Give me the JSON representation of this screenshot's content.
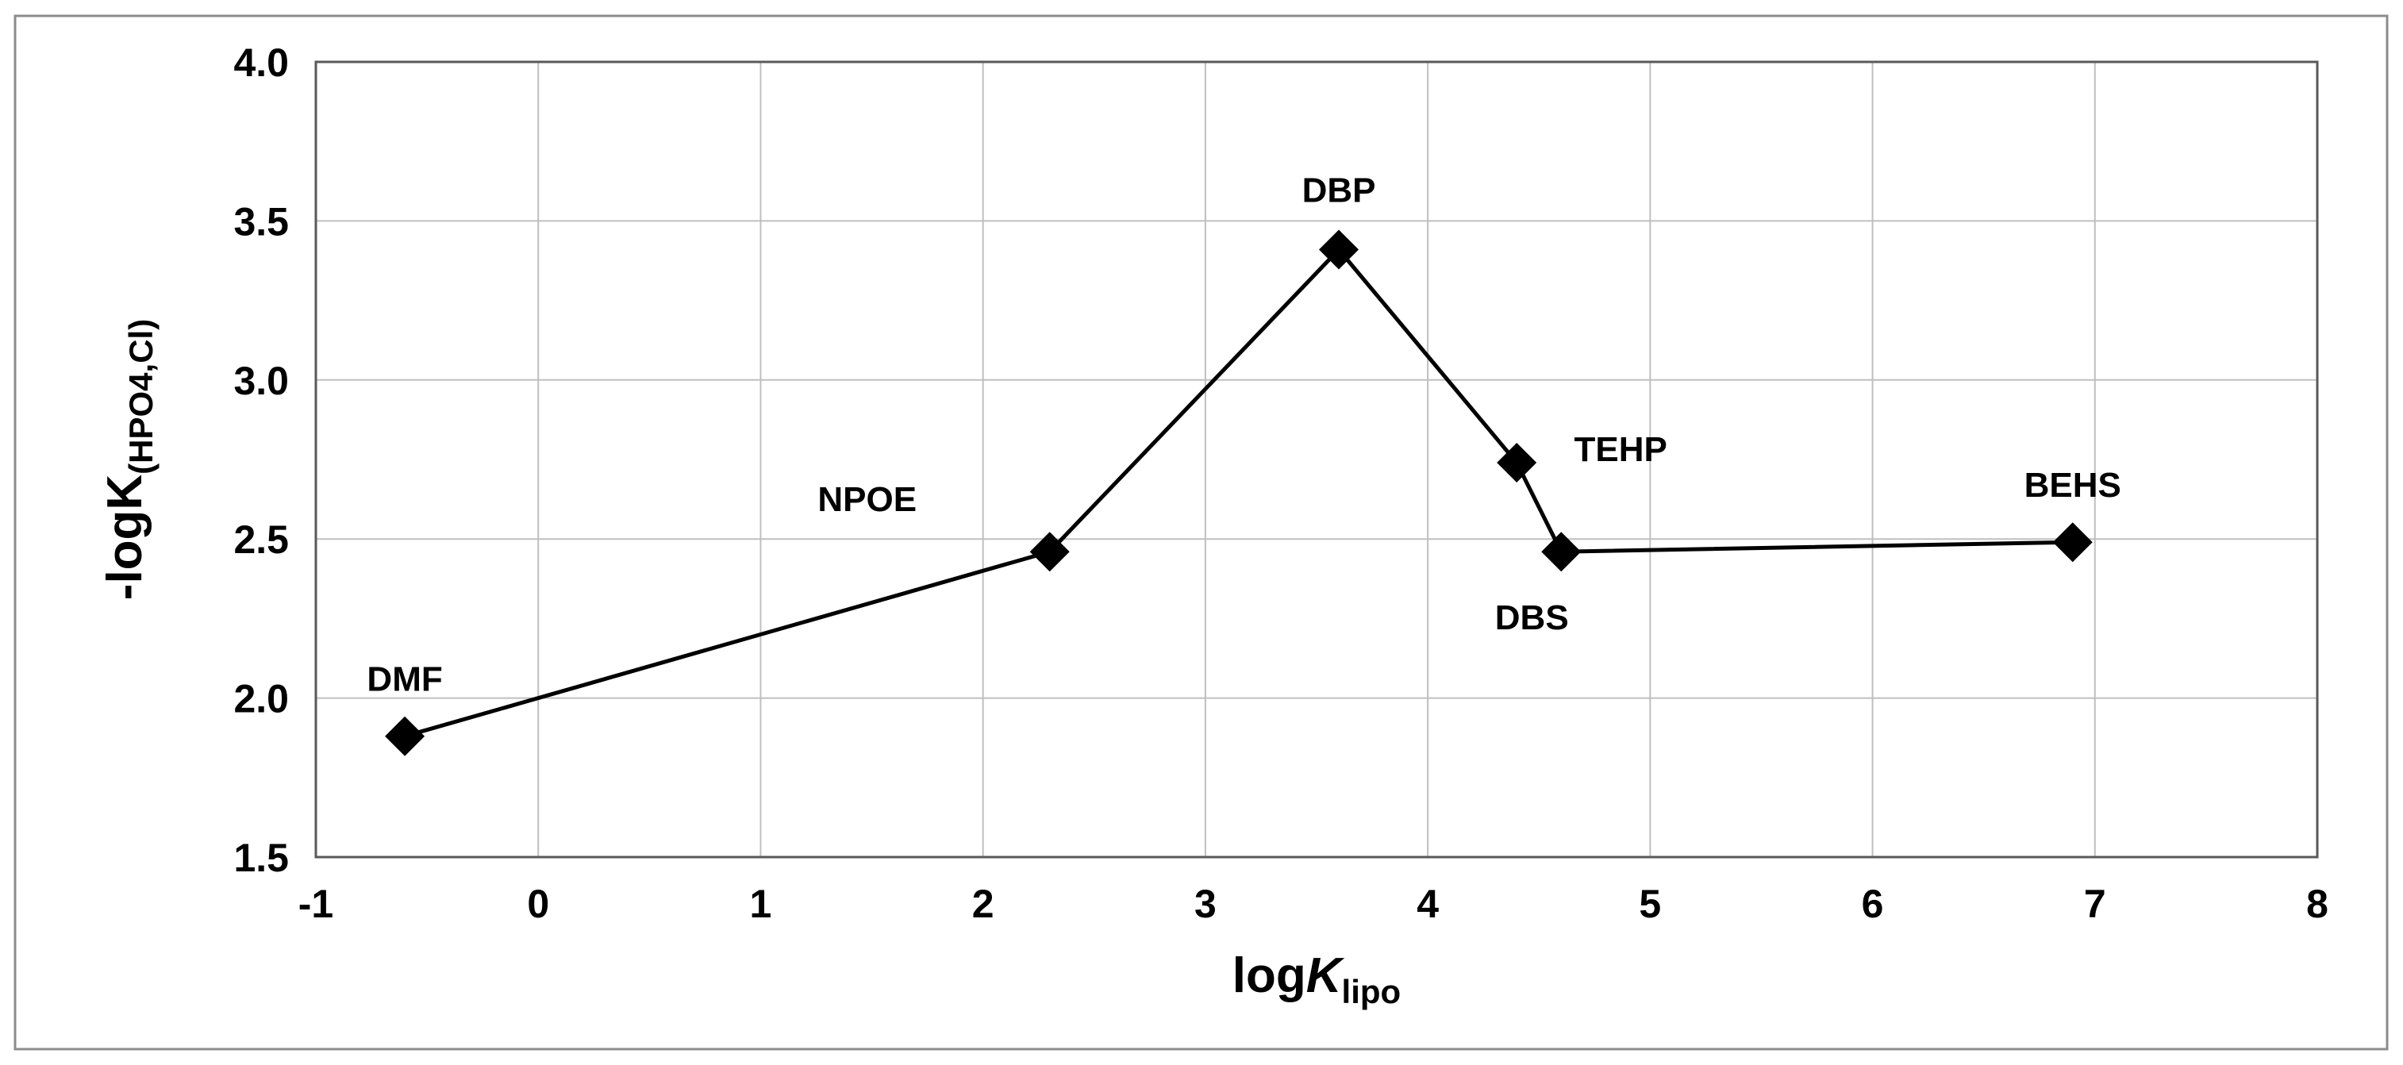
{
  "chart_data": {
    "type": "scatter",
    "x": [
      -0.6,
      2.3,
      3.6,
      4.4,
      4.6,
      6.9
    ],
    "y": [
      1.88,
      2.46,
      3.41,
      2.74,
      2.46,
      2.49
    ],
    "labels": [
      "DMF",
      "NPOE",
      "DBP",
      "TEHP",
      "DBS",
      "BEHS"
    ],
    "color": "#000000",
    "line": true,
    "marker": "diamond",
    "xlim": [
      -1,
      8
    ],
    "ylim": [
      1.5,
      4.0
    ],
    "xticks": [
      -1,
      0,
      1,
      2,
      3,
      4,
      5,
      6,
      7,
      8
    ],
    "yticks": [
      1.5,
      {
        "value": 2,
        "label": "2.0"
      },
      2.5,
      {
        "value": 3,
        "label": "3.0"
      },
      3.5,
      {
        "value": 4,
        "label": "4.0"
      }
    ],
    "grid": true,
    "x_label": [
      "log",
      "K",
      "lipo"
    ],
    "y_label": [
      "-logK",
      "(HPO4,Cl)"
    ]
  }
}
